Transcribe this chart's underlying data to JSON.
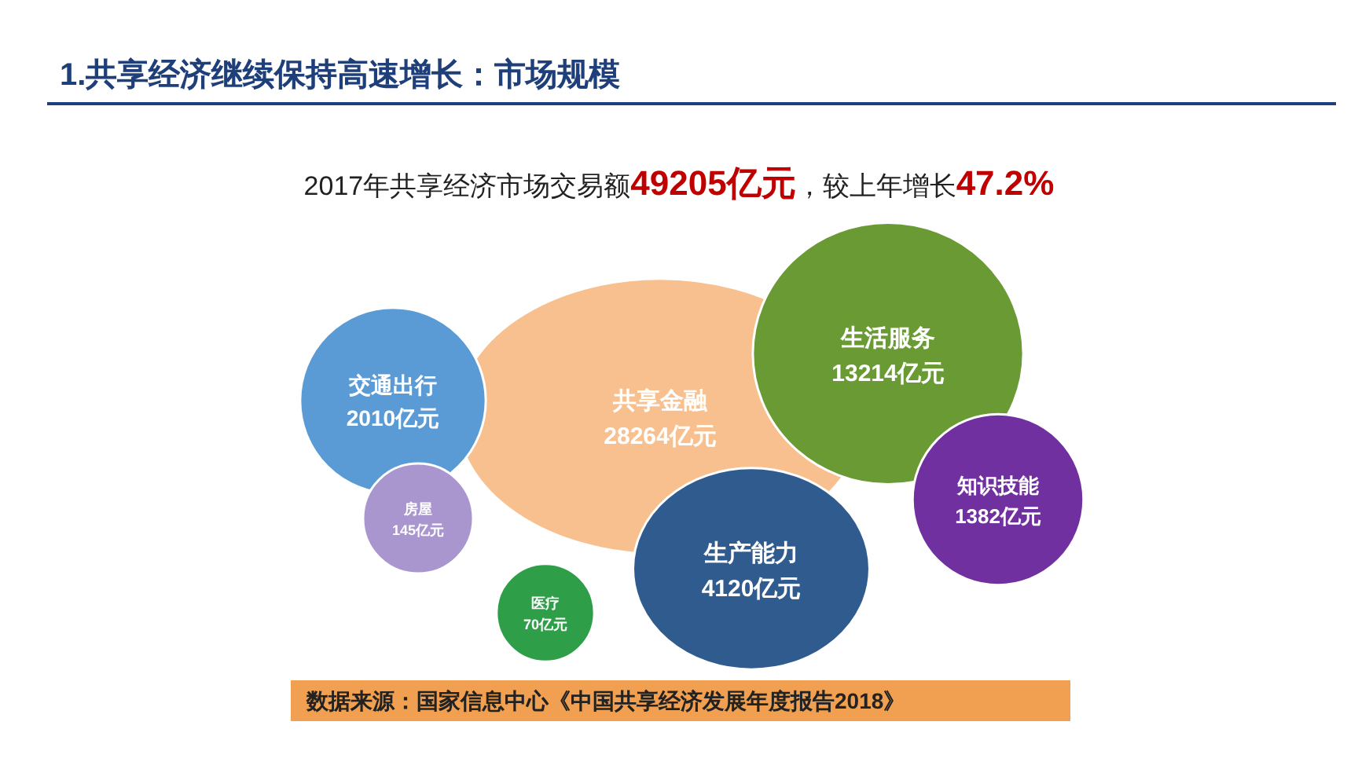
{
  "chart_data": {
    "type": "other",
    "title": "1.共享经济继续保持高速增长：市场规模",
    "subtitle": "2017年共享经济市场交易额49205亿元，较上年增长47.2%",
    "categories": [
      "交通出行",
      "共享金融",
      "生活服务",
      "房屋",
      "知识技能",
      "生产能力",
      "医疗"
    ],
    "values": [
      2010,
      28264,
      13214,
      145,
      1382,
      4120,
      70
    ],
    "value_labels": [
      "2010亿元",
      "28264亿元",
      "13214亿元",
      "145亿元",
      "1382亿元",
      "4120亿元",
      "70亿元"
    ],
    "colors": [
      "#5b9bd5",
      "#f8c08f",
      "#6a9a34",
      "#a996cf",
      "#7030a0",
      "#2f5b8f",
      "#2e9e48"
    ],
    "annotations": [
      "数据来源：国家信息中心《中国共享经济发展年度报告2018》"
    ]
  }
}
